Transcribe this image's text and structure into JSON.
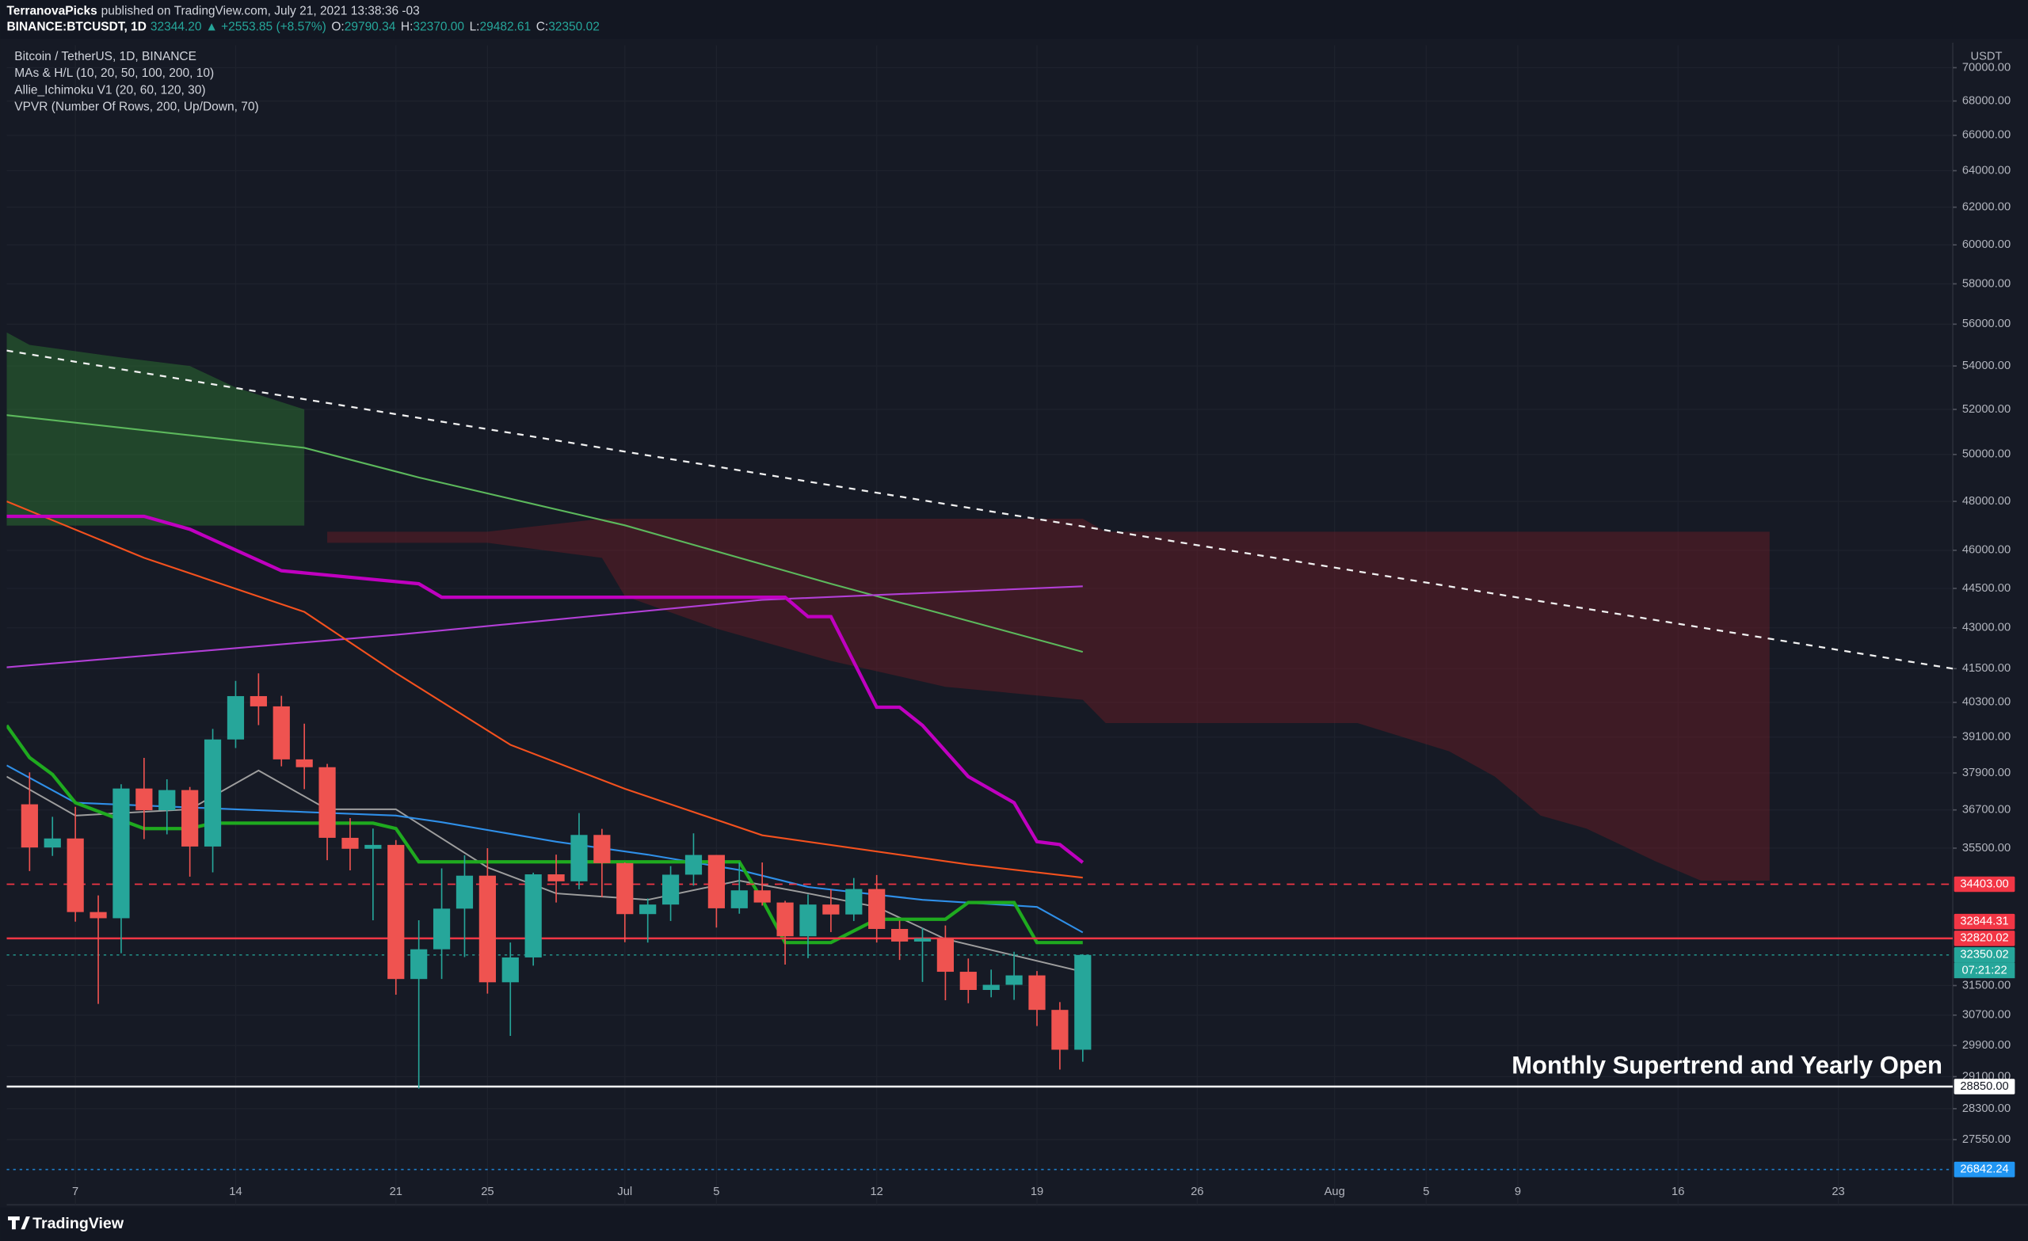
{
  "header": {
    "author": "TerranovaPicks",
    "published": "published on TradingView.com, July 21, 2021 13:38:36 -03",
    "symbol": "BINANCE:BTCUSDT, 1D",
    "price": "32344.20",
    "change": "▲ +2553.85 (+8.57%)",
    "ohlc": [
      {
        "label": "O:",
        "value": "29790.34"
      },
      {
        "label": "H:",
        "value": "32370.00"
      },
      {
        "label": "L:",
        "value": "29482.61"
      },
      {
        "label": "C:",
        "value": "32350.02"
      }
    ]
  },
  "logo": "TradingView",
  "chart_data": {
    "type": "candlestick",
    "title": "Bitcoin / TetherUS, 1D, BINANCE",
    "legend": [
      "MAs & H/L (10, 20, 50, 100, 200, 10)",
      "Allie_Ichimoku V1 (20, 60, 120, 30)",
      "VPVR (Number Of Rows, 200, Up/Down, 70)"
    ],
    "axis_unit": "USDT",
    "countdown": "07:21:22",
    "annotation": "Monthly Supertrend and Yearly Open",
    "log_scale": true,
    "grid": true,
    "up_color": "#26a69a",
    "down_color": "#ef5350",
    "xlim": [
      "2021-06-04",
      "2021-08-28"
    ],
    "ylim": [
      26030,
      71380
    ],
    "x": [
      "2021-06-05",
      "2021-06-06",
      "2021-06-07",
      "2021-06-08",
      "2021-06-09",
      "2021-06-10",
      "2021-06-11",
      "2021-06-12",
      "2021-06-13",
      "2021-06-14",
      "2021-06-15",
      "2021-06-16",
      "2021-06-17",
      "2021-06-18",
      "2021-06-19",
      "2021-06-20",
      "2021-06-21",
      "2021-06-22",
      "2021-06-23",
      "2021-06-24",
      "2021-06-25",
      "2021-06-26",
      "2021-06-27",
      "2021-06-28",
      "2021-06-29",
      "2021-06-30",
      "2021-07-01",
      "2021-07-02",
      "2021-07-03",
      "2021-07-04",
      "2021-07-05",
      "2021-07-06",
      "2021-07-07",
      "2021-07-08",
      "2021-07-09",
      "2021-07-10",
      "2021-07-11",
      "2021-07-12",
      "2021-07-13",
      "2021-07-14",
      "2021-07-15",
      "2021-07-16",
      "2021-07-17",
      "2021-07-18",
      "2021-07-19",
      "2021-07-20",
      "2021-07-21"
    ],
    "open": [
      36880,
      35520,
      35800,
      33580,
      33400,
      37390,
      36690,
      37340,
      35550,
      39020,
      40520,
      40160,
      38350,
      38090,
      35820,
      35480,
      35600,
      31680,
      32510,
      33680,
      34660,
      31590,
      32280,
      34700,
      34490,
      35910,
      35040,
      33520,
      33800,
      34690,
      35290,
      33690,
      34220,
      33860,
      32880,
      33800,
      33510,
      34260,
      33090,
      32730,
      32820,
      31880,
      31380,
      31520,
      31780,
      30840,
      29790
    ],
    "high": [
      37920,
      36480,
      36800,
      34070,
      37530,
      38400,
      37690,
      37440,
      39380,
      41060,
      41330,
      40530,
      39560,
      38200,
      36440,
      36110,
      35750,
      33340,
      34880,
      35280,
      35500,
      32700,
      34750,
      35300,
      36600,
      36100,
      35060,
      33980,
      34950,
      35960,
      35290,
      35060,
      35060,
      33910,
      34100,
      34250,
      34590,
      34680,
      33330,
      33120,
      33190,
      32250,
      31940,
      32440,
      31900,
      31050,
      32370
    ],
    "low": [
      34800,
      35260,
      33300,
      31000,
      32400,
      35780,
      35930,
      34630,
      34760,
      38730,
      39510,
      38120,
      37370,
      35130,
      34820,
      33340,
      31250,
      28800,
      31680,
      32290,
      31280,
      30150,
      32050,
      33860,
      34250,
      34020,
      32710,
      32700,
      33320,
      34360,
      33130,
      33530,
      33770,
      32080,
      32260,
      33000,
      33320,
      32700,
      32210,
      31600,
      31100,
      31020,
      31180,
      31110,
      30410,
      29280,
      29480
    ],
    "close": [
      35520,
      35800,
      33580,
      33400,
      37390,
      36690,
      37340,
      35550,
      39020,
      40520,
      40160,
      38350,
      38090,
      35820,
      35480,
      35600,
      31680,
      32510,
      33680,
      34660,
      31590,
      32280,
      34700,
      34490,
      35910,
      35040,
      33520,
      33800,
      34690,
      35290,
      33690,
      34220,
      33860,
      32880,
      33800,
      33510,
      34260,
      33090,
      32730,
      32820,
      31880,
      31380,
      31520,
      31780,
      30840,
      29790,
      32350
    ],
    "xticks": [
      {
        "value": "2021-06-07",
        "label": "7"
      },
      {
        "value": "2021-06-14",
        "label": "14"
      },
      {
        "value": "2021-06-21",
        "label": "21"
      },
      {
        "value": "2021-06-25",
        "label": "25"
      },
      {
        "value": "2021-07-01",
        "label": "Jul"
      },
      {
        "value": "2021-07-05",
        "label": "5"
      },
      {
        "value": "2021-07-12",
        "label": "12"
      },
      {
        "value": "2021-07-19",
        "label": "19"
      },
      {
        "value": "2021-07-26",
        "label": "26"
      },
      {
        "value": "2021-08-01",
        "label": "Aug"
      },
      {
        "value": "2021-08-05",
        "label": "5"
      },
      {
        "value": "2021-08-09",
        "label": "9"
      },
      {
        "value": "2021-08-16",
        "label": "16"
      },
      {
        "value": "2021-08-23",
        "label": "23"
      }
    ],
    "yticks": [
      {
        "value": 70000,
        "label": "70000.00"
      },
      {
        "value": 68000,
        "label": "68000.00"
      },
      {
        "value": 66000,
        "label": "66000.00"
      },
      {
        "value": 64000,
        "label": "64000.00"
      },
      {
        "value": 62000,
        "label": "62000.00"
      },
      {
        "value": 60000,
        "label": "60000.00"
      },
      {
        "value": 58000,
        "label": "58000.00"
      },
      {
        "value": 56000,
        "label": "56000.00"
      },
      {
        "value": 54000,
        "label": "54000.00"
      },
      {
        "value": 52000,
        "label": "52000.00"
      },
      {
        "value": 50000,
        "label": "50000.00"
      },
      {
        "value": 48000,
        "label": "48000.00"
      },
      {
        "value": 46000,
        "label": "46000.00"
      },
      {
        "value": 44500,
        "label": "44500.00"
      },
      {
        "value": 43000,
        "label": "43000.00"
      },
      {
        "value": 41500,
        "label": "41500.00"
      },
      {
        "value": 40300,
        "label": "40300.00"
      },
      {
        "value": 39100,
        "label": "39100.00"
      },
      {
        "value": 37900,
        "label": "37900.00"
      },
      {
        "value": 36700,
        "label": "36700.00"
      },
      {
        "value": 35500,
        "label": "35500.00"
      },
      {
        "value": 31500,
        "label": "31500.00"
      },
      {
        "value": 30700,
        "label": "30700.00"
      },
      {
        "value": 29900,
        "label": "29900.00"
      },
      {
        "value": 29100,
        "label": "29100.00"
      },
      {
        "value": 28300,
        "label": "28300.00"
      },
      {
        "value": 27550,
        "label": "27550.00"
      }
    ],
    "indicators": [
      {
        "type": "area",
        "color": "rgba(46,125,50,0.45)",
        "x": [
          "2021-06-04",
          "2021-06-05",
          "2021-06-09",
          "2021-06-12",
          "2021-06-14",
          "2021-06-17"
        ],
        "upper": [
          55600,
          55000,
          54400,
          54000,
          53000,
          52000
        ],
        "lower": [
          47000,
          47000,
          47000,
          47000,
          47000,
          47000
        ]
      },
      {
        "type": "area",
        "color": "rgba(120,28,38,0.42)",
        "x": [
          "2021-06-18",
          "2021-06-25",
          "2021-06-30",
          "2021-07-01",
          "2021-07-05",
          "2021-07-10",
          "2021-07-15",
          "2021-07-21",
          "2021-07-22",
          "2021-08-02",
          "2021-08-06",
          "2021-08-08",
          "2021-08-10",
          "2021-08-12",
          "2021-08-15",
          "2021-08-17",
          "2021-08-20"
        ],
        "upper": [
          46750,
          46750,
          47280,
          47280,
          47280,
          47280,
          47280,
          47280,
          46750,
          46750,
          46750,
          46750,
          46750,
          46750,
          46750,
          46750,
          46750
        ],
        "lower": [
          46300,
          46300,
          45700,
          44200,
          42970,
          41780,
          40850,
          40390,
          39580,
          39580,
          38620,
          37780,
          36520,
          36110,
          35100,
          34510,
          34510
        ]
      },
      {
        "type": "line",
        "color": "#f0f0f0",
        "width": 1.4,
        "dash": true,
        "x": [
          "2021-06-04",
          "2021-08-28"
        ],
        "values": [
          54730,
          41500
        ]
      },
      {
        "type": "line",
        "color": "#5cb85c",
        "width": 1.3,
        "x": [
          "2021-06-04",
          "2021-06-17",
          "2021-06-22",
          "2021-07-01",
          "2021-07-10",
          "2021-07-21"
        ],
        "values": [
          51740,
          50290,
          49010,
          47010,
          44680,
          42110
        ]
      },
      {
        "type": "line",
        "color": "#b23fd6",
        "width": 1.3,
        "x": [
          "2021-06-04",
          "2021-06-21",
          "2021-07-07",
          "2021-07-21"
        ],
        "values": [
          41550,
          42740,
          44060,
          44580
        ]
      },
      {
        "type": "line",
        "color": "#f4511e",
        "width": 1.3,
        "x": [
          "2021-06-04",
          "2021-06-10",
          "2021-06-17",
          "2021-06-21",
          "2021-06-26",
          "2021-07-01",
          "2021-07-07",
          "2021-07-16",
          "2021-07-21"
        ],
        "values": [
          48000,
          45700,
          43600,
          41340,
          38840,
          37380,
          35900,
          35000,
          34600
        ]
      },
      {
        "type": "line",
        "color": "#c000c0",
        "width": 2.6,
        "x": [
          "2021-06-04",
          "2021-06-10",
          "2021-06-12",
          "2021-06-16",
          "2021-06-22",
          "2021-06-23",
          "2021-07-08",
          "2021-07-09",
          "2021-07-10",
          "2021-07-12",
          "2021-07-13",
          "2021-07-14",
          "2021-07-16",
          "2021-07-18",
          "2021-07-19",
          "2021-07-20",
          "2021-07-21"
        ],
        "values": [
          47380,
          47380,
          46850,
          45190,
          44680,
          44160,
          44160,
          43420,
          43420,
          40130,
          40130,
          39500,
          37780,
          36930,
          35700,
          35610,
          35060
        ]
      },
      {
        "type": "line",
        "color": "#9e9e9e",
        "width": 1.2,
        "x": [
          "2021-06-04",
          "2021-06-07",
          "2021-06-12",
          "2021-06-15",
          "2021-06-18",
          "2021-06-21",
          "2021-06-25",
          "2021-06-28",
          "2021-07-02",
          "2021-07-06",
          "2021-07-09",
          "2021-07-12",
          "2021-07-15",
          "2021-07-21"
        ],
        "values": [
          37780,
          36520,
          36720,
          37980,
          36720,
          36720,
          34910,
          34130,
          33940,
          34510,
          34130,
          33730,
          32800,
          31880
        ]
      },
      {
        "type": "line",
        "color": "#2f8fe8",
        "width": 1.3,
        "x": [
          "2021-06-04",
          "2021-06-07",
          "2021-06-14",
          "2021-06-21",
          "2021-06-23",
          "2021-06-28",
          "2021-07-02",
          "2021-07-06",
          "2021-07-09",
          "2021-07-14",
          "2021-07-19",
          "2021-07-21"
        ],
        "values": [
          38150,
          36930,
          36720,
          36520,
          36310,
          35700,
          35300,
          34830,
          34320,
          33940,
          33730,
          32990
        ]
      },
      {
        "type": "line",
        "color": "#1faa1f",
        "width": 2.6,
        "x": [
          "2021-06-04",
          "2021-06-05",
          "2021-06-06",
          "2021-06-07",
          "2021-06-10",
          "2021-06-12",
          "2021-06-13",
          "2021-06-15",
          "2021-06-20",
          "2021-06-21",
          "2021-06-22",
          "2021-07-06",
          "2021-07-07",
          "2021-07-08",
          "2021-07-10",
          "2021-07-12",
          "2021-07-15",
          "2021-07-16",
          "2021-07-18",
          "2021-07-19",
          "2021-07-21"
        ],
        "values": [
          39500,
          38410,
          37850,
          36930,
          36110,
          36110,
          36280,
          36280,
          36280,
          36110,
          35080,
          35080,
          33940,
          32700,
          32700,
          33370,
          33370,
          33860,
          33860,
          32700,
          32700
        ]
      }
    ],
    "levels": [
      {
        "value": 34403,
        "color": "#f23645",
        "style": "dashed"
      },
      {
        "value": 32820.02,
        "color": "#f23645",
        "style": "solid"
      },
      {
        "value": 28850,
        "color": "#ffffff",
        "style": "solid"
      },
      {
        "value": 26842.24,
        "color": "#2196f3",
        "style": "dotted"
      },
      {
        "value": 32350.02,
        "color": "#26a69a",
        "style": "dotted"
      }
    ],
    "price_tags": [
      {
        "value": 34403,
        "label": "34403.00",
        "color": "#f23645",
        "text_color": "#ffffff"
      },
      {
        "value": 32820.02,
        "label": "32820.02",
        "color": "#f23645",
        "text_color": "#ffffff"
      },
      {
        "value": 32844.31,
        "label": "32844.31",
        "color": "#f23645",
        "text_color": "#ffffff"
      },
      {
        "value": 32350.02,
        "label": "32350.02",
        "color": "#26a69a",
        "text_color": "#ffffff"
      },
      {
        "value": 28850,
        "label": "28850.00",
        "color": "#ffffff",
        "text_color": "#131722"
      },
      {
        "value": 26842.24,
        "label": "26842.24",
        "color": "#2196f3",
        "text_color": "#ffffff"
      }
    ]
  }
}
